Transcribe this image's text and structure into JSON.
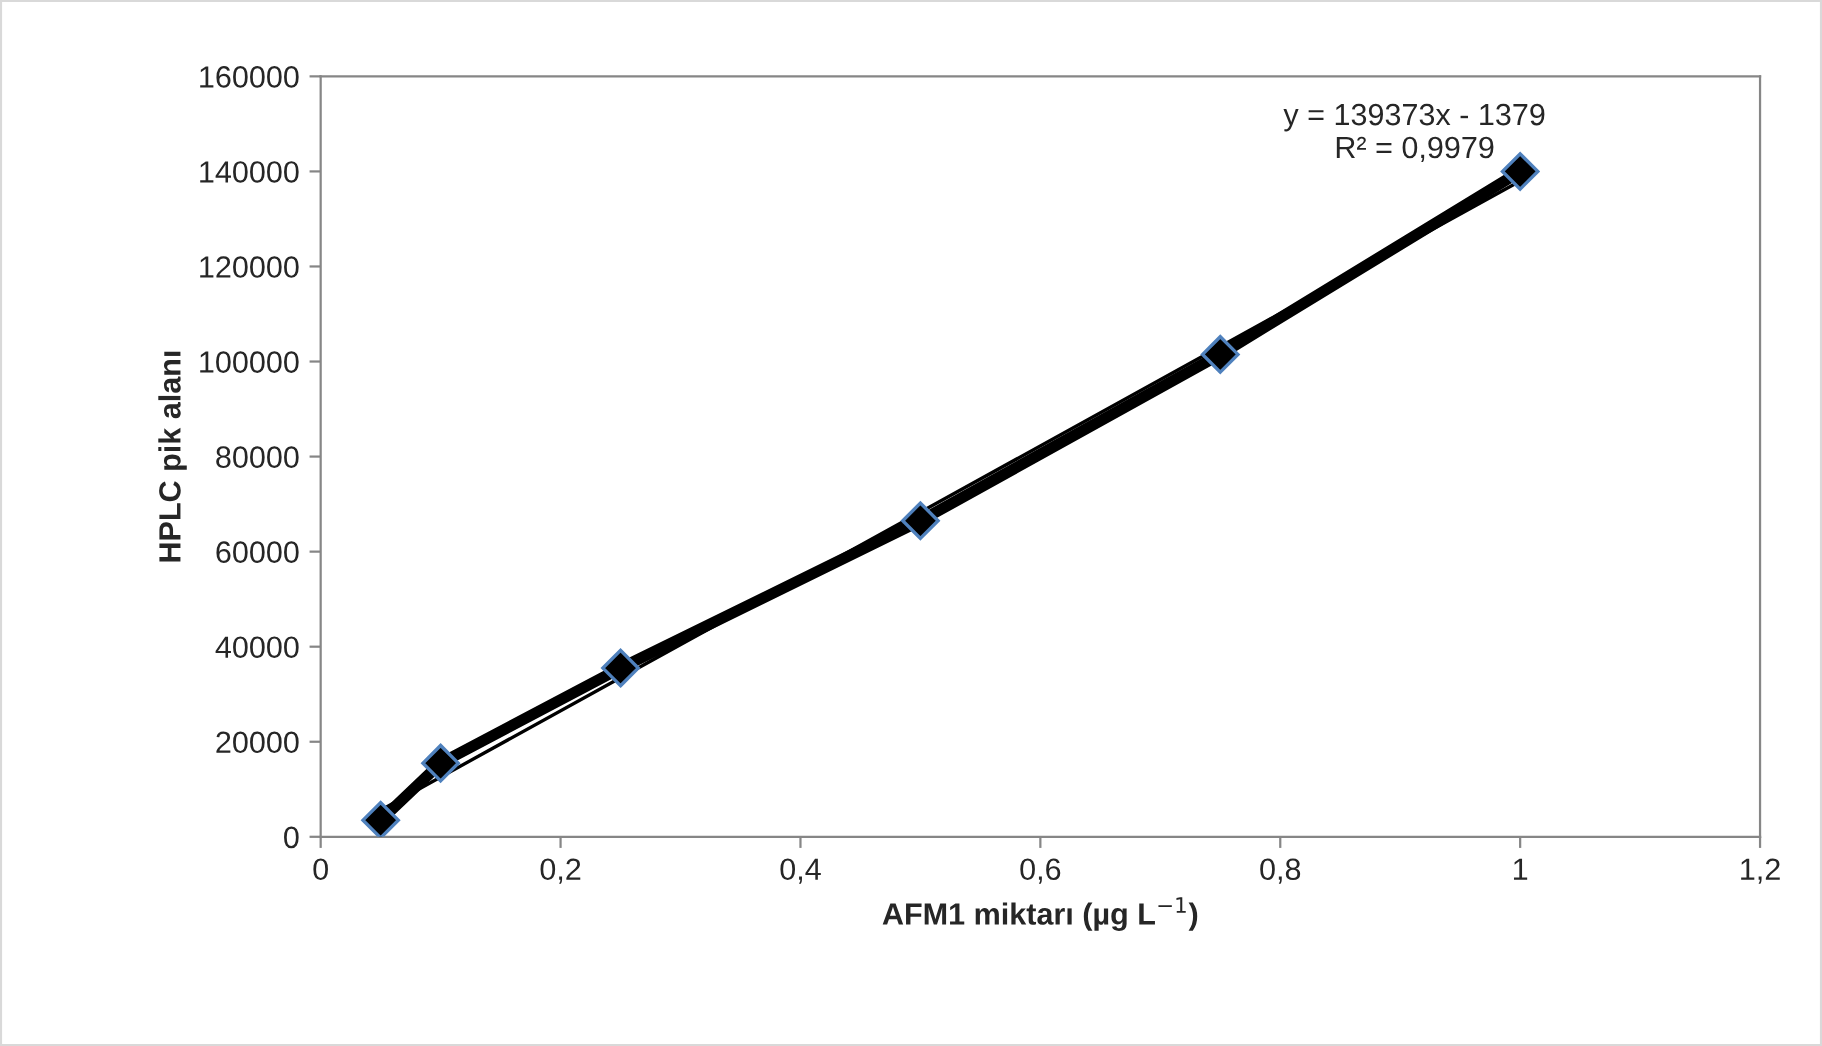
{
  "chart_data": {
    "type": "line",
    "xlabel": "AFM1 miktarı (µg L$^{−1}$)",
    "ylabel": "HPLC pik alanı",
    "x": [
      0.05,
      0.1,
      0.25,
      0.5,
      0.75,
      1
    ],
    "series": [
      {
        "color": "#000000",
        "values": [
          3500,
          15500,
          35500,
          66500,
          101500,
          140000
        ],
        "marker": "diamond",
        "line_style": "solid"
      },
      {
        "color": "#000000",
        "x": [
          0.05,
          1
        ],
        "values": [
          5600,
          138000
        ],
        "marker": "none",
        "line_style": "solid"
      }
    ],
    "annotations": [
      "y = 139373x - 1379\nR² = 0,9979"
    ],
    "xlim": [
      0,
      1.2
    ],
    "xticks": [
      0,
      {
        "value": 0.2,
        "label": "0,2"
      },
      {
        "value": 0.4,
        "label": "0,4"
      },
      {
        "value": 0.6,
        "label": "0,6"
      },
      {
        "value": 0.8,
        "label": "0,8"
      },
      1,
      {
        "value": 1.2,
        "label": "1,2"
      }
    ],
    "ylim": [
      0,
      160000
    ],
    "yticks": [
      0,
      20000,
      40000,
      60000,
      80000,
      100000,
      120000,
      140000,
      160000
    ],
    "grid": false,
    "legend": false
  }
}
